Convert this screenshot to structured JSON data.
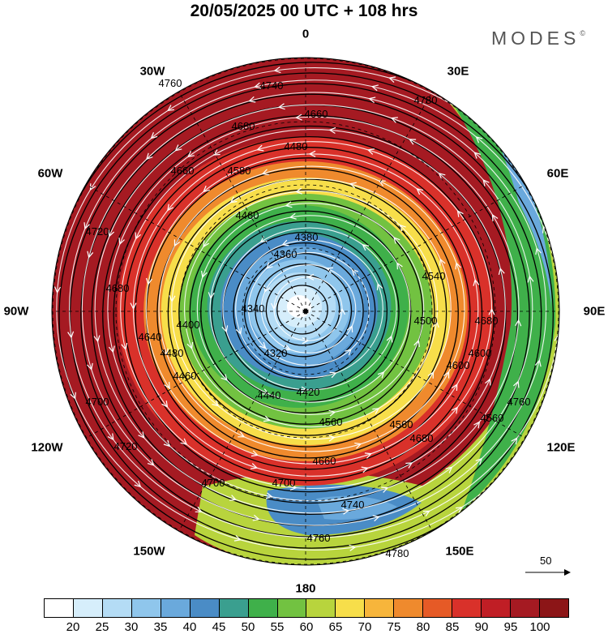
{
  "header": {
    "title": "20/05/2025  00 UTC  + 108 hrs",
    "brand": "MODES",
    "brand_mark": "©"
  },
  "longitude_labels": [
    "0",
    "30E",
    "60E",
    "90E",
    "120E",
    "150E",
    "180",
    "150W",
    "120W",
    "90W",
    "60W",
    "30W"
  ],
  "contour_labels": [
    "4760",
    "4740",
    "4780",
    "4680",
    "4660",
    "4660",
    "4580",
    "4480",
    "4460",
    "4380",
    "4360",
    "4340",
    "4320",
    "4400",
    "4480",
    "4420",
    "4440",
    "4460",
    "4560",
    "4560",
    "4600",
    "4640",
    "4680",
    "4700",
    "4700",
    "4700",
    "4680",
    "4660",
    "4740",
    "4760",
    "4780",
    "4720",
    "4720",
    "4540",
    "4500",
    "4600",
    "4560",
    "4680",
    "4760"
  ],
  "reference_vector": {
    "label": "50"
  },
  "colorbar": {
    "labels": [
      "20",
      "25",
      "30",
      "35",
      "40",
      "45",
      "50",
      "55",
      "60",
      "65",
      "70",
      "75",
      "80",
      "85",
      "90",
      "95",
      "100"
    ],
    "colors": [
      "#ffffff",
      "#d6eefb",
      "#b4dcf5",
      "#8fc6ec",
      "#6aa9dc",
      "#4a8cc6",
      "#3a9f8f",
      "#3fb04a",
      "#72c241",
      "#b8d43d",
      "#f7de4a",
      "#f7b53b",
      "#ef8a2d",
      "#e65a26",
      "#d9312a",
      "#c01e25",
      "#a51a22",
      "#8c1517"
    ]
  },
  "map": {
    "projection": "north-polar-stereographic",
    "background": "#ffffff",
    "grid_lines": "dashed"
  }
}
